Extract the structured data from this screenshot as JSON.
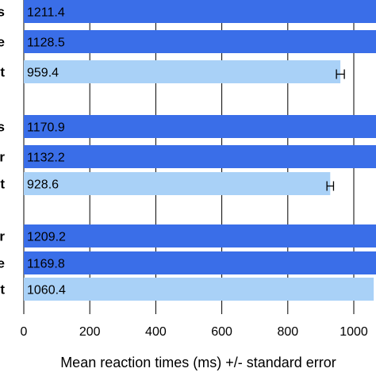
{
  "chart_data": {
    "type": "bar",
    "orientation": "horizontal",
    "xlabel": "Mean reaction times (ms) +/- standard error",
    "ylabel": "",
    "xlim": [
      0,
      1000
    ],
    "xticks": [
      "0",
      "200",
      "400",
      "600",
      "800",
      "1000"
    ],
    "grid": "vertical",
    "categories": [
      "s",
      "e",
      "t",
      "s",
      "r",
      "t",
      "r",
      "e",
      "t"
    ],
    "values": [
      1211.4,
      1128.5,
      959.4,
      1170.9,
      1132.2,
      928.6,
      1209.2,
      1169.8,
      1060.4
    ],
    "value_labels": [
      "1211.4",
      "1128.5",
      "959.4",
      "1170.9",
      "1132.2",
      "928.6",
      "1209.2",
      "1169.8",
      "1060.4"
    ],
    "groups": [
      [
        0,
        1,
        2
      ],
      [
        3,
        4,
        5
      ],
      [
        6,
        7,
        8
      ]
    ],
    "bar_colors": [
      "#3a6ee8",
      "#3a6ee8",
      "#a9d1f7",
      "#3a6ee8",
      "#3a6ee8",
      "#a9d1f7",
      "#3a6ee8",
      "#3a6ee8",
      "#a9d1f7"
    ],
    "error_bars": [
      null,
      null,
      12,
      null,
      null,
      10,
      null,
      null,
      null
    ]
  }
}
